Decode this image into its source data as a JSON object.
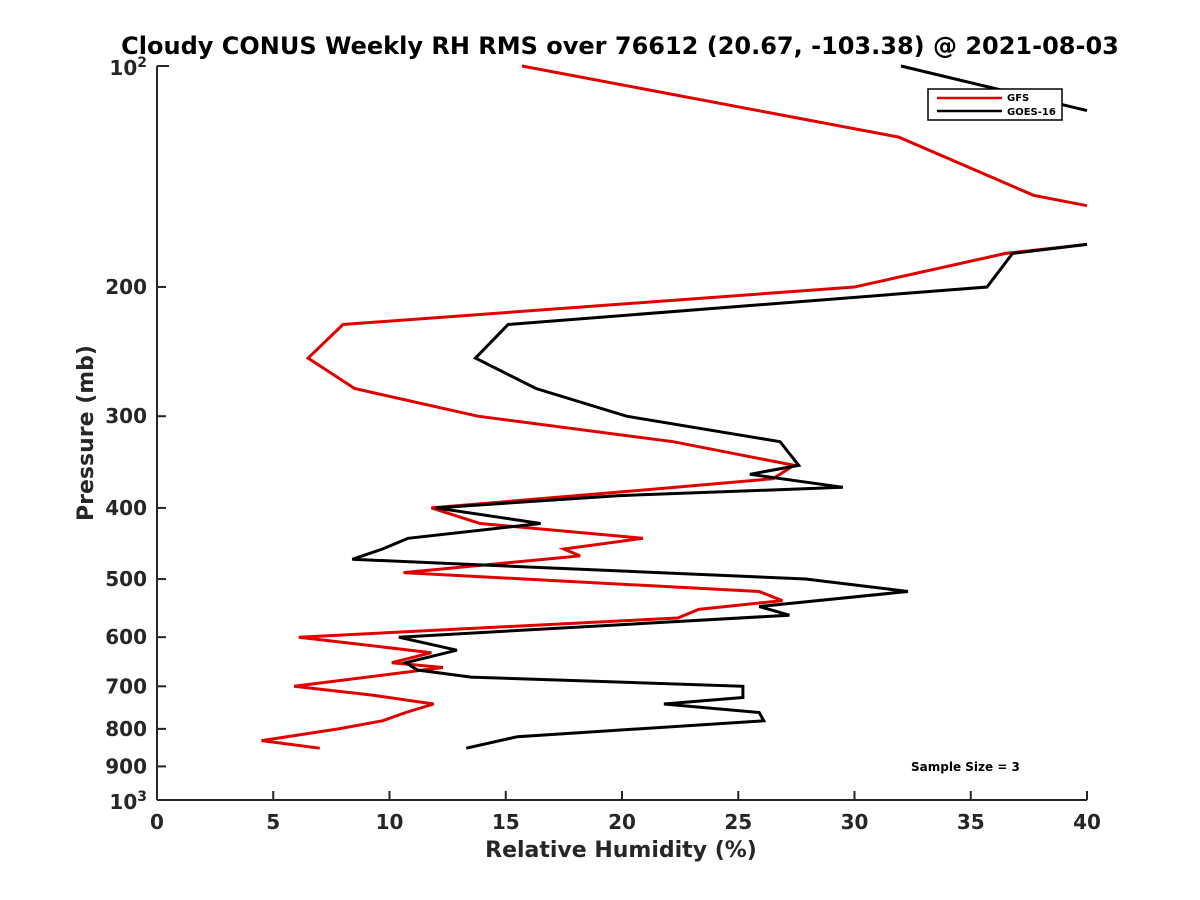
{
  "chart_data": {
    "type": "line",
    "title": "Cloudy CONUS Weekly RH RMS over 76612 (20.67, -103.38) @ 2021-08-03",
    "xlabel": "Relative Humidity (%)",
    "ylabel": "Pressure (mb)",
    "xlim": [
      0,
      40
    ],
    "ylim": [
      100,
      1000
    ],
    "yscale": "log",
    "y_reversed": true,
    "x_ticks": [
      0,
      5,
      10,
      15,
      20,
      25,
      30,
      35,
      40
    ],
    "x_tick_labels": [
      "0",
      "5",
      "10",
      "15",
      "20",
      "25",
      "30",
      "35",
      "40"
    ],
    "y_ticks": [
      200,
      300,
      400,
      500,
      600,
      700,
      800,
      900
    ],
    "y_tick_labels": [
      "200",
      "300",
      "400",
      "500",
      "600",
      "700",
      "800",
      "900"
    ],
    "y_decade_labels": [
      {
        "value": 100,
        "base": "10",
        "exp": "2"
      },
      {
        "value": 1000,
        "base": "10",
        "exp": "3"
      }
    ],
    "grid": false,
    "legend_position": "top-right",
    "annotation": "Sample Size = 3",
    "series": [
      {
        "name": "GFS",
        "color": "#e00000",
        "points": [
          [
            15.7,
            100
          ],
          [
            31.9,
            125
          ],
          [
            37.7,
            150
          ],
          [
            40.0,
            155
          ],
          [
            null,
            null
          ],
          [
            40.0,
            175
          ],
          [
            36.5,
            180
          ],
          [
            30.0,
            200
          ],
          [
            8.0,
            225
          ],
          [
            6.5,
            250
          ],
          [
            8.5,
            275
          ],
          [
            13.8,
            300
          ],
          [
            22.2,
            325
          ],
          [
            27.4,
            350
          ],
          [
            26.5,
            365
          ],
          [
            22.3,
            375
          ],
          [
            11.8,
            400
          ],
          [
            13.9,
            420
          ],
          [
            20.9,
            440
          ],
          [
            17.5,
            455
          ],
          [
            18.2,
            465
          ],
          [
            10.6,
            490
          ],
          [
            25.9,
            520
          ],
          [
            26.9,
            535
          ],
          [
            23.3,
            550
          ],
          [
            22.4,
            565
          ],
          [
            6.1,
            600
          ],
          [
            11.8,
            630
          ],
          [
            10.1,
            650
          ],
          [
            12.3,
            660
          ],
          [
            5.9,
            700
          ],
          [
            9.3,
            720
          ],
          [
            11.9,
            740
          ],
          [
            10.7,
            760
          ],
          [
            9.7,
            780
          ],
          [
            7.8,
            800
          ],
          [
            4.5,
            830
          ],
          [
            7.0,
            850
          ]
        ]
      },
      {
        "name": "GOES-16",
        "color": "#000000",
        "points": [
          [
            32.0,
            100
          ],
          [
            40.0,
            115
          ],
          [
            null,
            null
          ],
          [
            40.0,
            175
          ],
          [
            36.8,
            180
          ],
          [
            35.7,
            200
          ],
          [
            15.1,
            225
          ],
          [
            13.7,
            250
          ],
          [
            16.3,
            275
          ],
          [
            20.2,
            300
          ],
          [
            26.8,
            325
          ],
          [
            27.6,
            350
          ],
          [
            25.5,
            360
          ],
          [
            29.5,
            375
          ],
          [
            19.8,
            385
          ],
          [
            12.0,
            400
          ],
          [
            16.5,
            420
          ],
          [
            10.8,
            440
          ],
          [
            9.7,
            455
          ],
          [
            8.4,
            470
          ],
          [
            27.9,
            500
          ],
          [
            32.3,
            520
          ],
          [
            25.9,
            545
          ],
          [
            27.2,
            560
          ],
          [
            10.4,
            600
          ],
          [
            12.9,
            625
          ],
          [
            10.7,
            650
          ],
          [
            11.2,
            665
          ],
          [
            13.5,
            680
          ],
          [
            25.2,
            700
          ],
          [
            25.2,
            725
          ],
          [
            21.8,
            740
          ],
          [
            25.9,
            760
          ],
          [
            26.1,
            780
          ],
          [
            15.5,
            820
          ],
          [
            13.3,
            850
          ]
        ]
      }
    ]
  }
}
